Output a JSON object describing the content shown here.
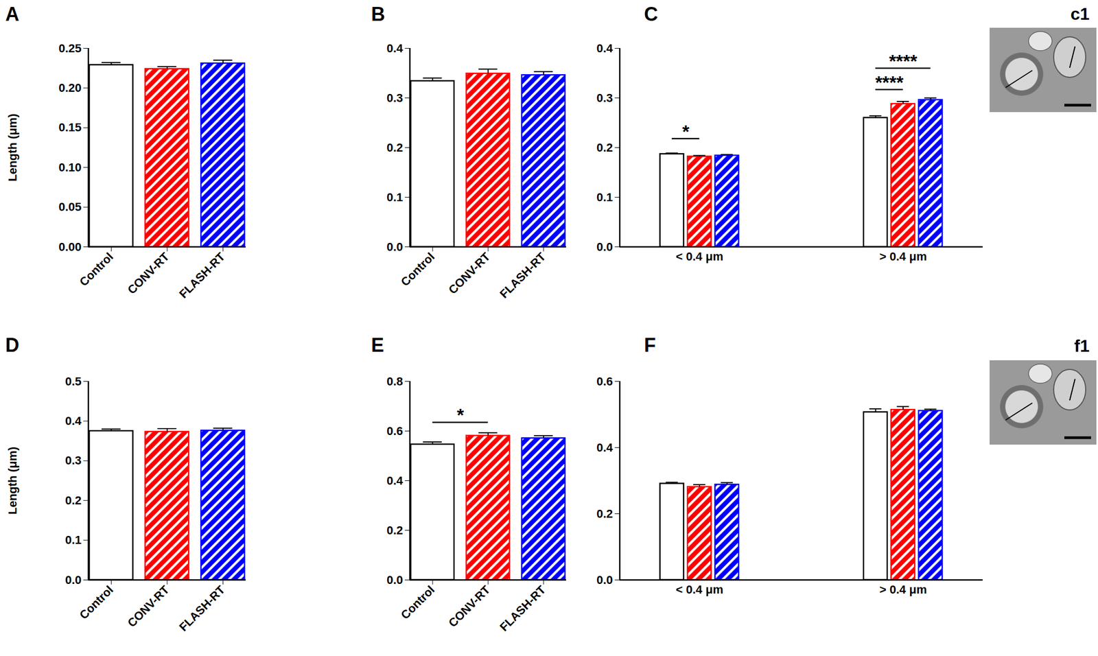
{
  "chart_data": [
    {
      "type": "bar",
      "title": "A",
      "y_label": "Length (μm)",
      "categories": [
        "Control",
        "CONV-RT",
        "FLASH-RT"
      ],
      "values": [
        0.229,
        0.224,
        0.231
      ],
      "errors": [
        0.003,
        0.003,
        0.004
      ],
      "colors": [
        "#ffffff",
        "#ff0000",
        "#0000ff"
      ],
      "ylim": [
        0,
        0.25
      ],
      "yticks": [
        {
          "value": 0,
          "label": "0.00"
        },
        0.05,
        {
          "value": 0.1,
          "label": "0.10"
        },
        0.15,
        {
          "value": 0.2,
          "label": "0.20"
        },
        0.25
      ],
      "annotations": []
    },
    {
      "type": "bar",
      "title": "B",
      "categories": [
        "Control",
        "CONV-RT",
        "FLASH-RT"
      ],
      "values": [
        0.334,
        0.349,
        0.346
      ],
      "errors": [
        0.006,
        0.009,
        0.007
      ],
      "colors": [
        "#ffffff",
        "#ff0000",
        "#0000ff"
      ],
      "ylim": [
        0,
        0.4
      ],
      "yticks": [
        {
          "value": 0,
          "label": "0.0"
        },
        0.1,
        0.2,
        0.3,
        0.4
      ],
      "annotations": []
    },
    {
      "type": "bar",
      "title": "C",
      "inset_label": "c1",
      "categories": [
        "< 0.4 μm",
        "> 0.4 μm"
      ],
      "series": [
        {
          "color": "#ffffff",
          "values": [
            0.187,
            0.26
          ],
          "errors": [
            0.002,
            0.004
          ]
        },
        {
          "color": "#ff0000",
          "values": [
            0.182,
            0.288
          ],
          "errors": [
            0.002,
            0.005
          ]
        },
        {
          "color": "#0000ff",
          "values": [
            0.184,
            0.296
          ],
          "errors": [
            0.002,
            0.004
          ]
        }
      ],
      "ylim": [
        0,
        0.4
      ],
      "yticks": [
        {
          "value": 0,
          "label": "0.0"
        },
        0.1,
        0.2,
        0.3,
        0.4
      ],
      "annotations": [
        {
          "text": "*",
          "group": 0,
          "from": 0,
          "to": 1,
          "y": 0.218
        },
        {
          "text": "****",
          "group": 1,
          "from": 0,
          "to": 1,
          "y": 0.317
        },
        {
          "text": "****",
          "group": 1,
          "from": 0,
          "to": 2,
          "y": 0.36
        }
      ]
    },
    {
      "type": "bar",
      "title": "D",
      "y_label": "Length (μm)",
      "categories": [
        "Control",
        "CONV-RT",
        "FLASH-RT"
      ],
      "values": [
        0.375,
        0.373,
        0.376
      ],
      "errors": [
        0.005,
        0.008,
        0.006
      ],
      "colors": [
        "#ffffff",
        "#ff0000",
        "#0000ff"
      ],
      "ylim": [
        0,
        0.5
      ],
      "yticks": [
        {
          "value": 0,
          "label": "0.0"
        },
        0.1,
        0.2,
        0.3,
        0.4,
        0.5
      ],
      "annotations": []
    },
    {
      "type": "bar",
      "title": "E",
      "categories": [
        "Control",
        "CONV-RT",
        "FLASH-RT"
      ],
      "values": [
        0.546,
        0.581,
        0.571
      ],
      "errors": [
        0.01,
        0.012,
        0.01
      ],
      "colors": [
        "#ffffff",
        "#ff0000",
        "#0000ff"
      ],
      "ylim": [
        0,
        0.8
      ],
      "yticks": [
        {
          "value": 0,
          "label": "0.0"
        },
        0.2,
        0.4,
        0.6,
        0.8
      ],
      "annotations": [
        {
          "text": "*",
          "from": 0,
          "to": 1,
          "y": 0.635
        }
      ]
    },
    {
      "type": "bar",
      "title": "F",
      "inset_label": "f1",
      "categories": [
        "< 0.4 μm",
        "> 0.4 μm"
      ],
      "series": [
        {
          "color": "#ffffff",
          "values": [
            0.291,
            0.507
          ],
          "errors": [
            0.004,
            0.01
          ]
        },
        {
          "color": "#ff0000",
          "values": [
            0.281,
            0.514
          ],
          "errors": [
            0.007,
            0.01
          ]
        },
        {
          "color": "#0000ff",
          "values": [
            0.288,
            0.511
          ],
          "errors": [
            0.006,
            0.005
          ]
        }
      ],
      "ylim": [
        0,
        0.6
      ],
      "yticks": [
        {
          "value": 0,
          "label": "0.0"
        },
        0.2,
        0.4,
        0.6
      ],
      "annotations": []
    }
  ]
}
